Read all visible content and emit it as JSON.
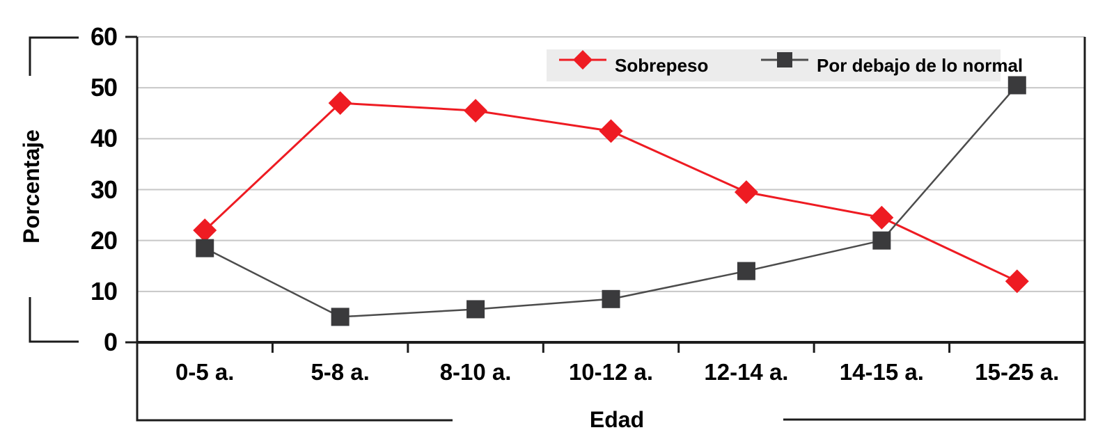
{
  "chart_data": {
    "type": "line",
    "title": "",
    "xlabel": "Edad",
    "ylabel": "Porcentaje",
    "categories": [
      "0-5 a.",
      "5-8 a.",
      "8-10 a.",
      "10-12 a.",
      "12-14 a.",
      "14-15 a.",
      "15-25 a."
    ],
    "series": [
      {
        "name": "Sobrepeso",
        "slug": "sobrepeso",
        "marker": "diamond",
        "color": "#ee1b22",
        "line_color": "#ee1b22",
        "line_width": 3,
        "values": [
          22,
          47,
          45.5,
          41.5,
          29.5,
          24.5,
          12
        ]
      },
      {
        "name": "Por debajo de lo normal",
        "slug": "por-debajo-de-lo-normal",
        "marker": "square",
        "color": "#3a3a3c",
        "line_color": "#4c4c4c",
        "line_width": 2.5,
        "values": [
          18.5,
          5,
          6.5,
          8.5,
          14,
          20,
          50.5
        ]
      }
    ],
    "ylim": [
      0,
      60
    ],
    "yticks": [
      0,
      10,
      20,
      30,
      40,
      50,
      60
    ],
    "grid": true,
    "legend_position": "top-inside"
  },
  "colors": {
    "grid": "#c7c7c7",
    "axis": "#1c1c1c",
    "legend_bg": "#ececec",
    "background": "#ffffff"
  }
}
